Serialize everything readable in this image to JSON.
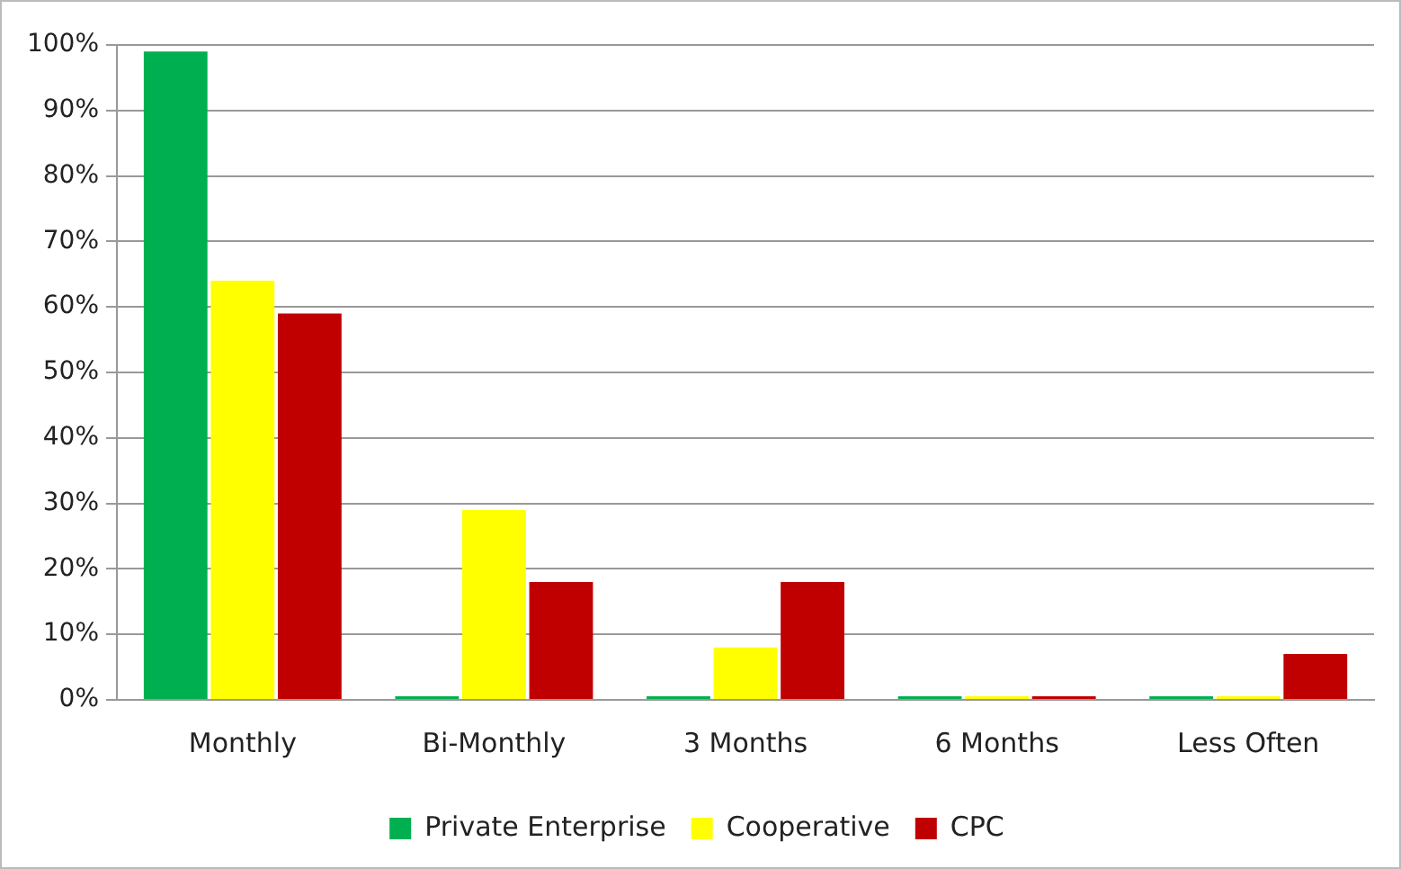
{
  "chart_data": {
    "type": "bar",
    "categories": [
      "Monthly",
      "Bi-Monthly",
      "3 Months",
      "6 Months",
      "Less Often"
    ],
    "series": [
      {
        "name": "Private Enterprise",
        "color": "#00b050",
        "values": [
          99,
          0,
          0,
          0,
          0
        ]
      },
      {
        "name": "Cooperative",
        "color": "#ffff00",
        "values": [
          64,
          29,
          8,
          0,
          0
        ]
      },
      {
        "name": "CPC",
        "color": "#c00000",
        "values": [
          59,
          18,
          18,
          0,
          7
        ]
      }
    ],
    "ylim": [
      0,
      100
    ],
    "yticks": [
      {
        "value": 0,
        "label": "0%"
      },
      {
        "value": 10,
        "label": "10%"
      },
      {
        "value": 20,
        "label": "20%"
      },
      {
        "value": 30,
        "label": "30%"
      },
      {
        "value": 40,
        "label": "40%"
      },
      {
        "value": 50,
        "label": "50%"
      },
      {
        "value": 60,
        "label": "60%"
      },
      {
        "value": 70,
        "label": "70%"
      },
      {
        "value": 80,
        "label": "80%"
      },
      {
        "value": 90,
        "label": "90%"
      },
      {
        "value": 100,
        "label": "100%"
      }
    ],
    "grid": "y",
    "legend": "bottom"
  }
}
